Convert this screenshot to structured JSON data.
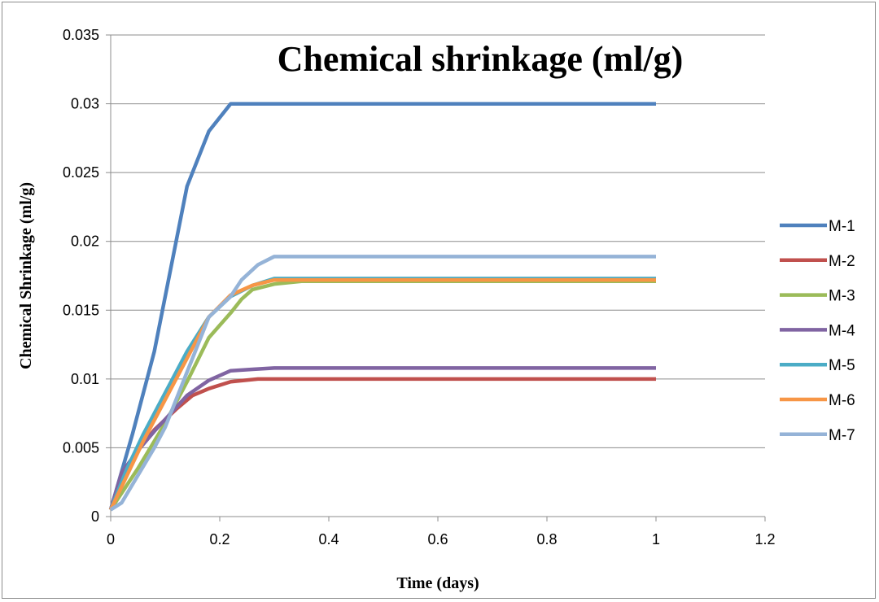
{
  "chart_data": {
    "type": "line",
    "title": "Chemical shrinkage (ml/g)",
    "xlabel": "Time (days)",
    "ylabel": "Chemical Shrinkage (ml/g)",
    "xlim": [
      0,
      1.2
    ],
    "ylim": [
      0,
      0.035
    ],
    "x_ticks": [
      "0",
      "0.2",
      "0.4",
      "0.6",
      "0.8",
      "1",
      "1.2"
    ],
    "y_ticks": [
      "0",
      "0.005",
      "0.01",
      "0.015",
      "0.02",
      "0.025",
      "0.03",
      "0.035"
    ],
    "grid": "horizontal",
    "legend_position": "right",
    "series": [
      {
        "name": "M-1",
        "color": "#4F81BD",
        "points": [
          [
            0,
            0.0005
          ],
          [
            0.04,
            0.006
          ],
          [
            0.08,
            0.012
          ],
          [
            0.11,
            0.018
          ],
          [
            0.14,
            0.024
          ],
          [
            0.18,
            0.028
          ],
          [
            0.22,
            0.03
          ],
          [
            0.3,
            0.03
          ],
          [
            1.0,
            0.03
          ]
        ]
      },
      {
        "name": "M-2",
        "color": "#C0504D",
        "points": [
          [
            0,
            0.0005
          ],
          [
            0.02,
            0.003
          ],
          [
            0.05,
            0.0048
          ],
          [
            0.08,
            0.0063
          ],
          [
            0.12,
            0.0078
          ],
          [
            0.15,
            0.0088
          ],
          [
            0.18,
            0.0093
          ],
          [
            0.22,
            0.0098
          ],
          [
            0.27,
            0.01
          ],
          [
            1.0,
            0.01
          ]
        ]
      },
      {
        "name": "M-3",
        "color": "#9BBB59",
        "points": [
          [
            0,
            0.0005
          ],
          [
            0.05,
            0.0035
          ],
          [
            0.1,
            0.0068
          ],
          [
            0.14,
            0.0098
          ],
          [
            0.18,
            0.013
          ],
          [
            0.22,
            0.0148
          ],
          [
            0.24,
            0.0158
          ],
          [
            0.26,
            0.0165
          ],
          [
            0.3,
            0.0169
          ],
          [
            0.35,
            0.0171
          ],
          [
            1.0,
            0.0171
          ]
        ]
      },
      {
        "name": "M-4",
        "color": "#8064A2",
        "points": [
          [
            0,
            0.0005
          ],
          [
            0.02,
            0.0032
          ],
          [
            0.05,
            0.0048
          ],
          [
            0.08,
            0.0062
          ],
          [
            0.11,
            0.0075
          ],
          [
            0.14,
            0.0088
          ],
          [
            0.18,
            0.0099
          ],
          [
            0.22,
            0.0106
          ],
          [
            0.26,
            0.0107
          ],
          [
            0.3,
            0.0108
          ],
          [
            1.0,
            0.0108
          ]
        ]
      },
      {
        "name": "M-5",
        "color": "#4BACC6",
        "points": [
          [
            0,
            0.0005
          ],
          [
            0.03,
            0.0035
          ],
          [
            0.06,
            0.006
          ],
          [
            0.1,
            0.009
          ],
          [
            0.14,
            0.012
          ],
          [
            0.18,
            0.0145
          ],
          [
            0.22,
            0.016
          ],
          [
            0.26,
            0.0168
          ],
          [
            0.3,
            0.0173
          ],
          [
            1.0,
            0.0173
          ]
        ]
      },
      {
        "name": "M-6",
        "color": "#F79646",
        "points": [
          [
            0,
            0.0005
          ],
          [
            0.03,
            0.003
          ],
          [
            0.06,
            0.0055
          ],
          [
            0.1,
            0.0085
          ],
          [
            0.14,
            0.0115
          ],
          [
            0.18,
            0.0145
          ],
          [
            0.22,
            0.0161
          ],
          [
            0.26,
            0.0168
          ],
          [
            0.3,
            0.0172
          ],
          [
            1.0,
            0.0172
          ]
        ]
      },
      {
        "name": "M-7",
        "color": "#95B3D7",
        "points": [
          [
            0,
            0.0005
          ],
          [
            0.02,
            0.001
          ],
          [
            0.05,
            0.003
          ],
          [
            0.08,
            0.005
          ],
          [
            0.1,
            0.0065
          ],
          [
            0.12,
            0.0085
          ],
          [
            0.15,
            0.0115
          ],
          [
            0.18,
            0.0145
          ],
          [
            0.22,
            0.016
          ],
          [
            0.24,
            0.0172
          ],
          [
            0.27,
            0.0183
          ],
          [
            0.3,
            0.0189
          ],
          [
            1.0,
            0.0189
          ]
        ]
      }
    ]
  }
}
